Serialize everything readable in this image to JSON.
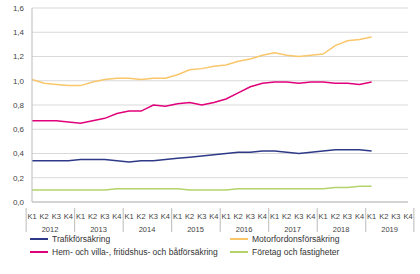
{
  "chart_data": {
    "type": "line",
    "categories": [
      "K1",
      "K2",
      "K3",
      "K4",
      "K1",
      "K2",
      "K3",
      "K4",
      "K1",
      "K2",
      "K3",
      "K4",
      "K1",
      "K2",
      "K3",
      "K4",
      "K1",
      "K2",
      "K3",
      "K4",
      "K1",
      "K2",
      "K3",
      "K4",
      "K1",
      "K2",
      "K3",
      "K4",
      "K1",
      "K2",
      "K3",
      "K4"
    ],
    "category_groups": [
      "2012",
      "2013",
      "2014",
      "2015",
      "2016",
      "2017",
      "2018",
      "2019"
    ],
    "series": [
      {
        "name": "Trafikförsäkring",
        "color": "#2e3a87",
        "values": [
          0.34,
          0.34,
          0.34,
          0.34,
          0.35,
          0.35,
          0.35,
          0.34,
          0.33,
          0.34,
          0.34,
          0.35,
          0.36,
          0.37,
          0.38,
          0.39,
          0.4,
          0.41,
          0.41,
          0.42,
          0.42,
          0.41,
          0.4,
          0.41,
          0.42,
          0.43,
          0.43,
          0.43,
          0.42,
          null,
          null,
          null
        ]
      },
      {
        "name": "Motorfordonsförsäkring",
        "color": "#f9c66a",
        "values": [
          1.01,
          0.98,
          0.97,
          0.96,
          0.96,
          0.99,
          1.01,
          1.02,
          1.02,
          1.01,
          1.02,
          1.02,
          1.05,
          1.09,
          1.1,
          1.12,
          1.13,
          1.16,
          1.18,
          1.21,
          1.23,
          1.21,
          1.2,
          1.21,
          1.22,
          1.29,
          1.33,
          1.34,
          1.36,
          null,
          null,
          null
        ]
      },
      {
        "name": "Hem- och villa-, fritidshus- och båtförsäkring",
        "color": "#e0007a",
        "values": [
          0.67,
          0.67,
          0.67,
          0.66,
          0.65,
          0.67,
          0.69,
          0.73,
          0.75,
          0.75,
          0.8,
          0.79,
          0.81,
          0.82,
          0.8,
          0.82,
          0.85,
          0.9,
          0.95,
          0.98,
          0.99,
          0.99,
          0.98,
          0.99,
          0.99,
          0.98,
          0.98,
          0.97,
          0.99,
          null,
          null,
          null
        ]
      },
      {
        "name": "Företag och fastigheter",
        "color": "#b5d36b",
        "values": [
          0.1,
          0.1,
          0.1,
          0.1,
          0.1,
          0.1,
          0.1,
          0.11,
          0.11,
          0.11,
          0.11,
          0.11,
          0.11,
          0.1,
          0.1,
          0.1,
          0.1,
          0.11,
          0.11,
          0.11,
          0.11,
          0.11,
          0.11,
          0.11,
          0.11,
          0.12,
          0.12,
          0.13,
          0.13,
          null,
          null,
          null
        ]
      }
    ],
    "ylim": [
      0,
      1.6
    ],
    "yticks": [
      {
        "value": 0,
        "label": "0,0"
      },
      {
        "value": 0.2,
        "label": "0,2"
      },
      {
        "value": 0.4,
        "label": "0,4"
      },
      {
        "value": 0.6,
        "label": "0,6"
      },
      {
        "value": 0.8,
        "label": "0,8"
      },
      {
        "value": 1.0,
        "label": "1,0"
      },
      {
        "value": 1.2,
        "label": "1,2"
      },
      {
        "value": 1.4,
        "label": "1,4"
      },
      {
        "value": 1.6,
        "label": "1,6"
      }
    ],
    "grid": true,
    "legend": "bottom"
  }
}
